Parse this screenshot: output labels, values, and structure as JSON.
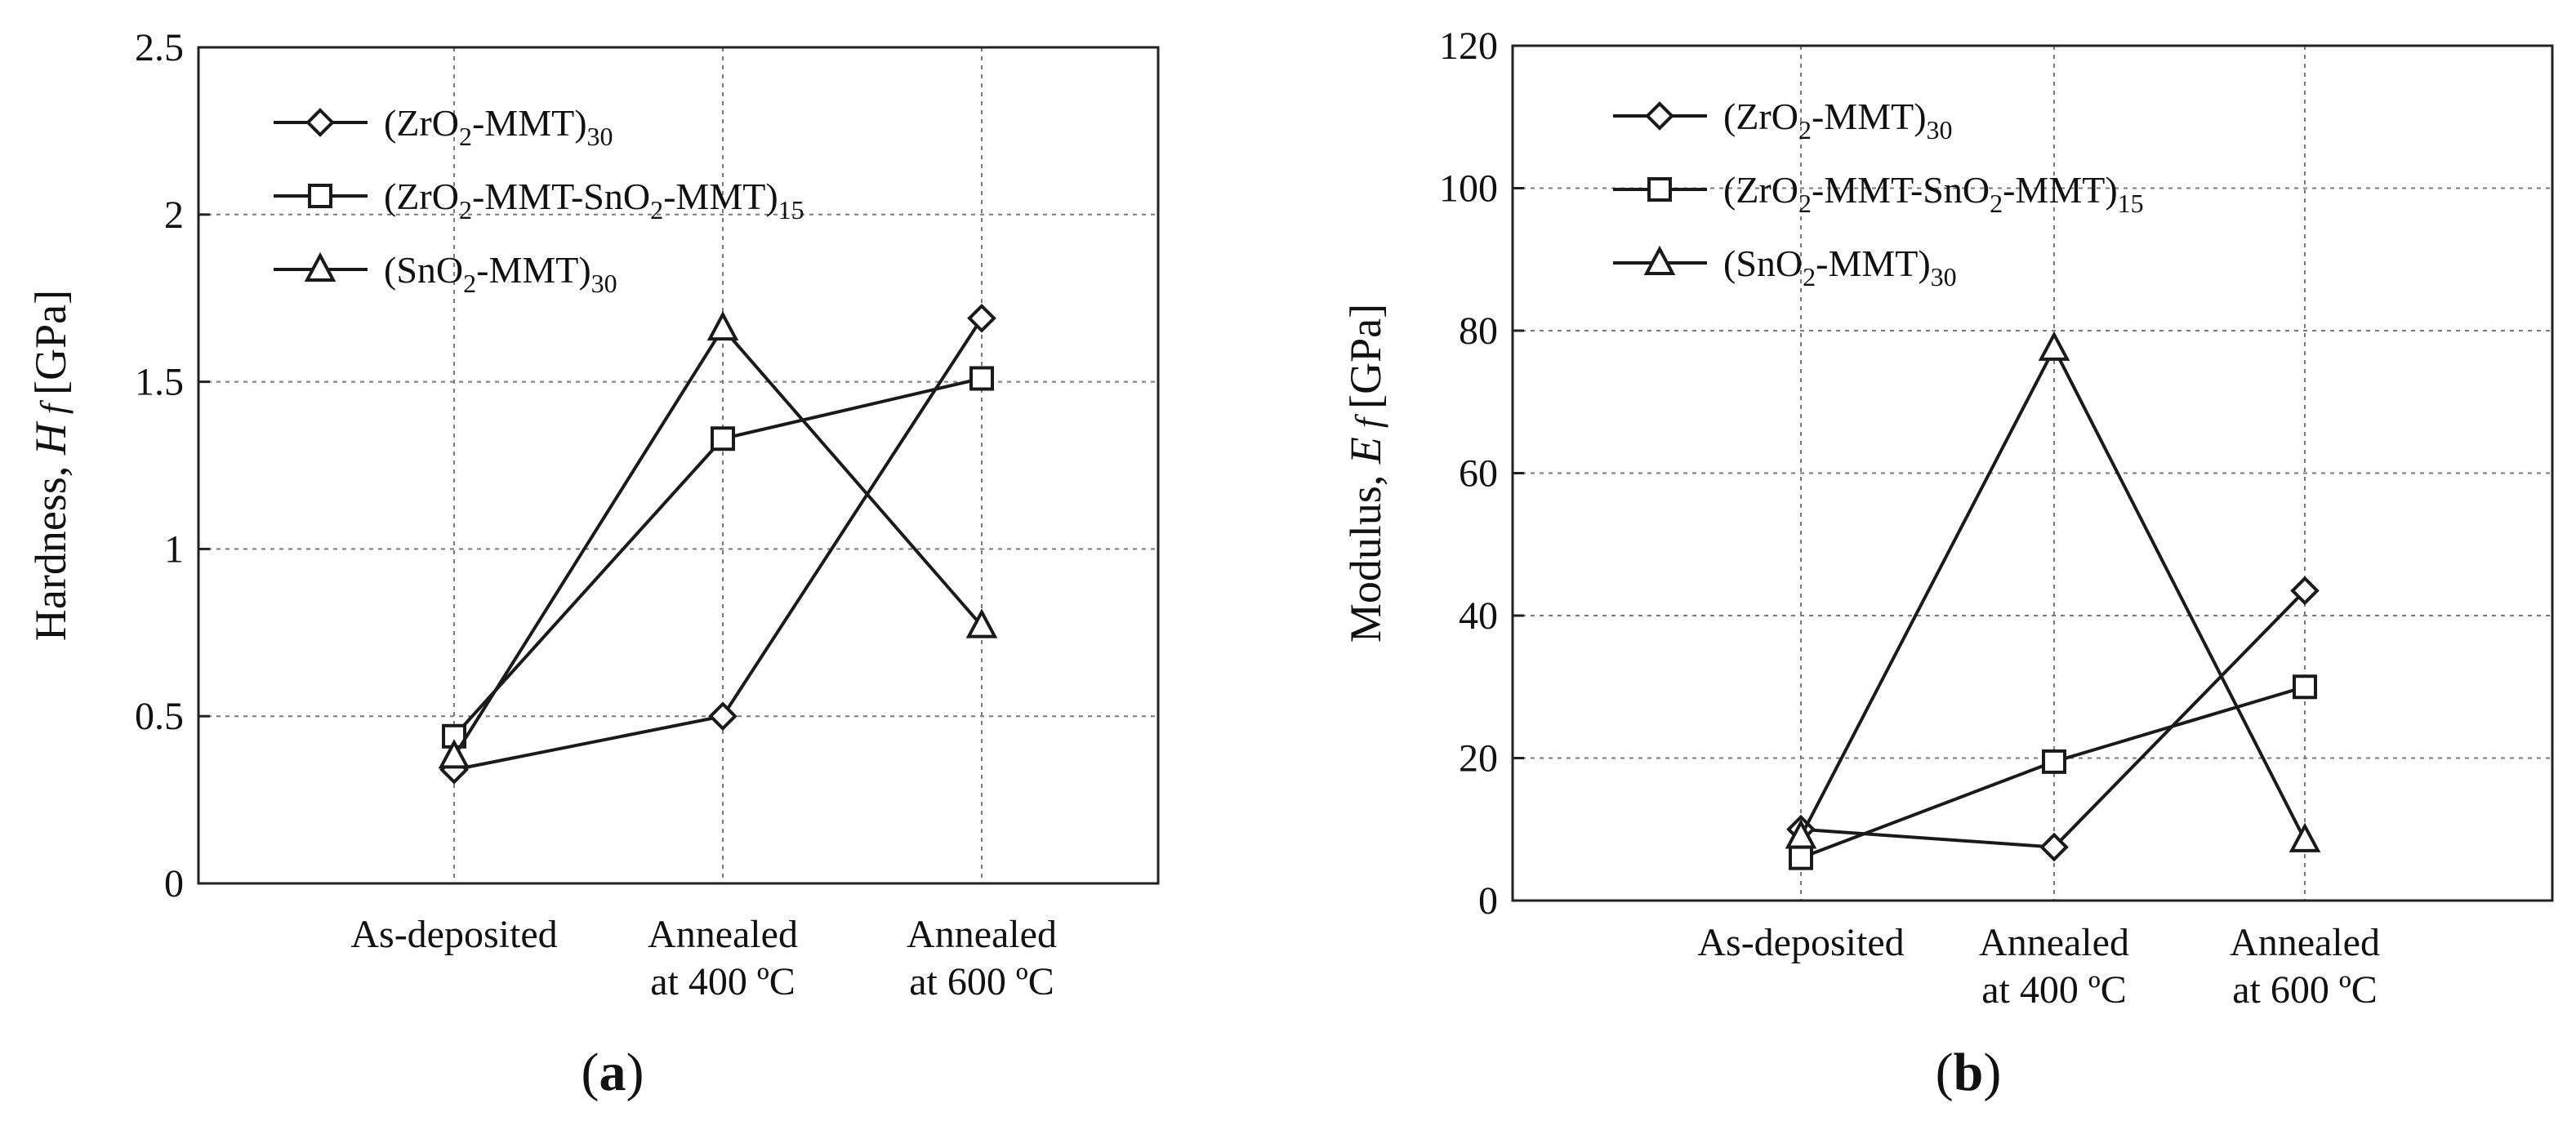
{
  "charts": [
    {
      "chart_data": {
        "type": "line",
        "panel_label": "a",
        "ylabel_text": "Hardness,",
        "ylabel_var_main": "H",
        "ylabel_var_sub": "f",
        "ylabel_unit": "[GPa]",
        "ylim": [
          0,
          2.5
        ],
        "yticks": [
          0,
          0.5,
          1,
          1.5,
          2,
          2.5
        ],
        "ytick_labels": [
          "0",
          "0.5",
          "1",
          "1.5",
          "2",
          "2.5"
        ],
        "categories": [
          [
            "As-deposited"
          ],
          [
            "Annealed",
            "at 400 ºC"
          ],
          [
            "Annealed",
            "at 600 ºC"
          ]
        ],
        "grid": true,
        "legend_position": "top-left",
        "series": [
          {
            "name_parts": [
              "(ZrO",
              "2",
              "-MMT)",
              "30"
            ],
            "marker": "diamond",
            "values": [
              0.34,
              0.5,
              1.69
            ]
          },
          {
            "name_parts": [
              "(ZrO",
              "2",
              "-MMT-SnO",
              "2",
              "-MMT)",
              "15"
            ],
            "marker": "square",
            "values": [
              0.44,
              1.33,
              1.51
            ]
          },
          {
            "name_parts": [
              "(SnO",
              "2",
              "-MMT)",
              "30"
            ],
            "marker": "triangle",
            "values": [
              0.38,
              1.66,
              0.77
            ]
          }
        ]
      }
    },
    {
      "chart_data": {
        "type": "line",
        "panel_label": "b",
        "ylabel_text": "Modulus,",
        "ylabel_var_main": "E",
        "ylabel_var_sub": "f",
        "ylabel_unit": "[GPa]",
        "ylim": [
          0,
          120
        ],
        "yticks": [
          0,
          20,
          40,
          60,
          80,
          100,
          120
        ],
        "ytick_labels": [
          "0",
          "20",
          "40",
          "60",
          "80",
          "100",
          "120"
        ],
        "categories": [
          [
            "As-deposited"
          ],
          [
            "Annealed",
            "at 400 ºC"
          ],
          [
            "Annealed",
            "at 600 ºC"
          ]
        ],
        "grid": true,
        "legend_position": "top-left",
        "series": [
          {
            "name_parts": [
              "(ZrO",
              "2",
              "-MMT)",
              "30"
            ],
            "marker": "diamond",
            "values": [
              10,
              7.5,
              43.5
            ]
          },
          {
            "name_parts": [
              "(ZrO",
              "2",
              "-MMT-SnO",
              "2",
              "-MMT)",
              "15"
            ],
            "marker": "square",
            "values": [
              6,
              19.5,
              30
            ]
          },
          {
            "name_parts": [
              "(SnO",
              "2",
              "-MMT)",
              "30"
            ],
            "marker": "triangle",
            "values": [
              9,
              77.5,
              8.5
            ]
          }
        ]
      }
    }
  ]
}
